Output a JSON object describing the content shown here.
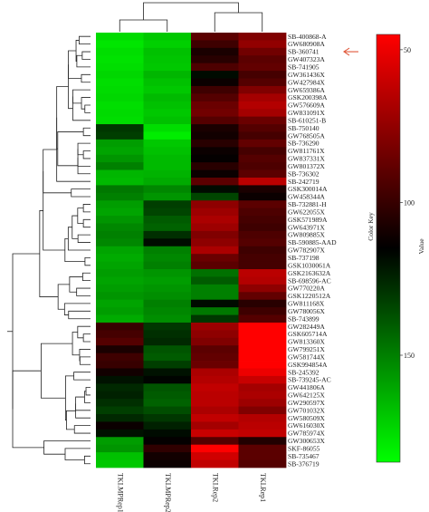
{
  "chart_data": {
    "type": "heatmap",
    "columns": [
      "TKI.MPRep1",
      "TKI.MPRep2",
      "TKI.Rep2",
      "TKI.Rep1"
    ],
    "rows": [
      "SB-400868-A",
      "GW680908A",
      "SB-360741",
      "GW407323A",
      "SB-741905",
      "GW361436X",
      "GW427984X",
      "GW659386A",
      "GSK200398A",
      "GW576609A",
      "GW831091X",
      "SB-610251-B",
      "SB-750140",
      "GW768505A",
      "SB-736290",
      "GW811761X",
      "GW837331X",
      "GW801372X",
      "SB-736302",
      "SB-242719",
      "GSK300014A",
      "GW458344A",
      "SB-732881-H",
      "GW622055X",
      "GSK571989A",
      "GW643971X",
      "GW809885X",
      "SB-590885-AAD",
      "GW782907X",
      "SB-737198",
      "GSK1030061A",
      "GSK2163632A",
      "SB-698596-AC",
      "GW770220A",
      "GSK1220512A",
      "GW811168X",
      "GW780056X",
      "SB-743899",
      "GW282449A",
      "GSK605714A",
      "GW813360X",
      "GW799251X",
      "GW581744X",
      "GSK994854A",
      "SB-245392",
      "SB-739245-AC",
      "GW441806A",
      "GW642125X",
      "GW290597X",
      "GW701032X",
      "GW580509X",
      "GW616030X",
      "GW785974X",
      "GW300653X",
      "SKF-86055",
      "SB-735467",
      "SB-376719"
    ],
    "values": [
      [
        175,
        170,
        90,
        80
      ],
      [
        178,
        172,
        98,
        75
      ],
      [
        176,
        168,
        108,
        84
      ],
      [
        177,
        169,
        104,
        90
      ],
      [
        176,
        170,
        94,
        88
      ],
      [
        174,
        165,
        118,
        96
      ],
      [
        176,
        168,
        112,
        92
      ],
      [
        175,
        170,
        98,
        80
      ],
      [
        174,
        166,
        92,
        70
      ],
      [
        176,
        168,
        86,
        66
      ],
      [
        175,
        170,
        84,
        70
      ],
      [
        176,
        168,
        92,
        86
      ],
      [
        130,
        176,
        108,
        92
      ],
      [
        132,
        180,
        110,
        96
      ],
      [
        158,
        170,
        104,
        88
      ],
      [
        160,
        168,
        112,
        96
      ],
      [
        156,
        166,
        114,
        92
      ],
      [
        150,
        166,
        104,
        94
      ],
      [
        165,
        164,
        112,
        90
      ],
      [
        166,
        162,
        90,
        64
      ],
      [
        148,
        152,
        118,
        108
      ],
      [
        150,
        156,
        134,
        112
      ],
      [
        158,
        132,
        76,
        90
      ],
      [
        160,
        134,
        72,
        94
      ],
      [
        156,
        140,
        68,
        96
      ],
      [
        152,
        142,
        72,
        98
      ],
      [
        150,
        128,
        80,
        94
      ],
      [
        152,
        118,
        76,
        92
      ],
      [
        160,
        150,
        68,
        98
      ],
      [
        162,
        152,
        86,
        96
      ],
      [
        160,
        150,
        90,
        96
      ],
      [
        158,
        156,
        146,
        64
      ],
      [
        160,
        158,
        140,
        66
      ],
      [
        158,
        156,
        150,
        76
      ],
      [
        156,
        154,
        150,
        88
      ],
      [
        160,
        150,
        118,
        104
      ],
      [
        158,
        152,
        148,
        98
      ],
      [
        162,
        154,
        130,
        92
      ],
      [
        100,
        130,
        72,
        38
      ],
      [
        96,
        128,
        76,
        32
      ],
      [
        92,
        126,
        80,
        30
      ],
      [
        108,
        138,
        90,
        32
      ],
      [
        98,
        140,
        88,
        34
      ],
      [
        100,
        132,
        86,
        30
      ],
      [
        110,
        120,
        68,
        50
      ],
      [
        120,
        116,
        66,
        60
      ],
      [
        126,
        138,
        62,
        70
      ],
      [
        124,
        140,
        64,
        68
      ],
      [
        128,
        142,
        64,
        72
      ],
      [
        132,
        136,
        68,
        80
      ],
      [
        126,
        130,
        62,
        66
      ],
      [
        112,
        124,
        70,
        64
      ],
      [
        120,
        118,
        60,
        62
      ],
      [
        158,
        114,
        92,
        106
      ],
      [
        156,
        102,
        44,
        90
      ],
      [
        168,
        110,
        58,
        90
      ],
      [
        170,
        112,
        62,
        92
      ]
    ],
    "color_key": {
      "title": "Color Key",
      "label": "Value",
      "ticks": [
        50,
        100,
        150
      ],
      "range": [
        45,
        185
      ]
    },
    "colors": {
      "low": "#ff0000",
      "mid": "#000000",
      "high": "#00ff00",
      "arrow": "#e05a3c"
    }
  }
}
